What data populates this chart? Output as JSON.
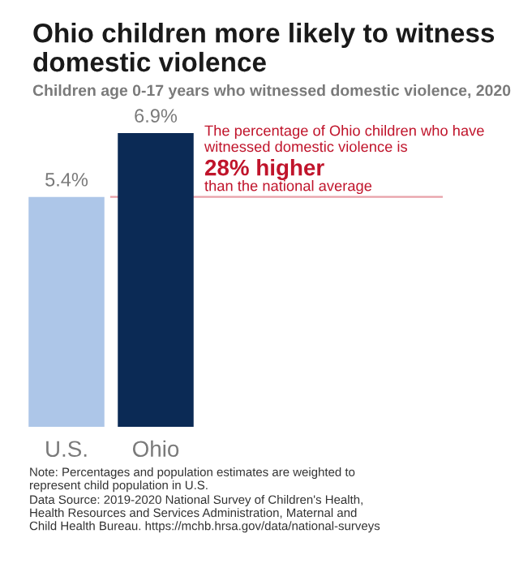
{
  "chart_data": {
    "type": "bar",
    "title": "Ohio children more likely to witness domestic violence",
    "subtitle": "Children age 0-17 years who witnessed domestic violence, 2020",
    "categories": [
      "U.S.",
      "Ohio"
    ],
    "values": [
      5.4,
      6.9
    ],
    "colors": [
      "#adc6e8",
      "#0b2a55"
    ],
    "value_labels": [
      "5.4%",
      "6.9%"
    ],
    "ref_lines": [
      {
        "axis": "y",
        "value": 5.4,
        "color": "#e8a0a8"
      }
    ],
    "annotations": [
      "The percentage of Ohio children who have witnessed domestic violence is",
      "28% higher",
      "than the national average",
      "Note: Percentages and population estimates are weighted to represent child population in U.S.",
      "Data Source: 2019-2020 National Survey of Children's Health, Health Resources and Services Administration, Maternal and Child Health Bureau. https://mchb.hrsa.gov/data/national-surveys"
    ],
    "grid": false,
    "legend": false
  }
}
